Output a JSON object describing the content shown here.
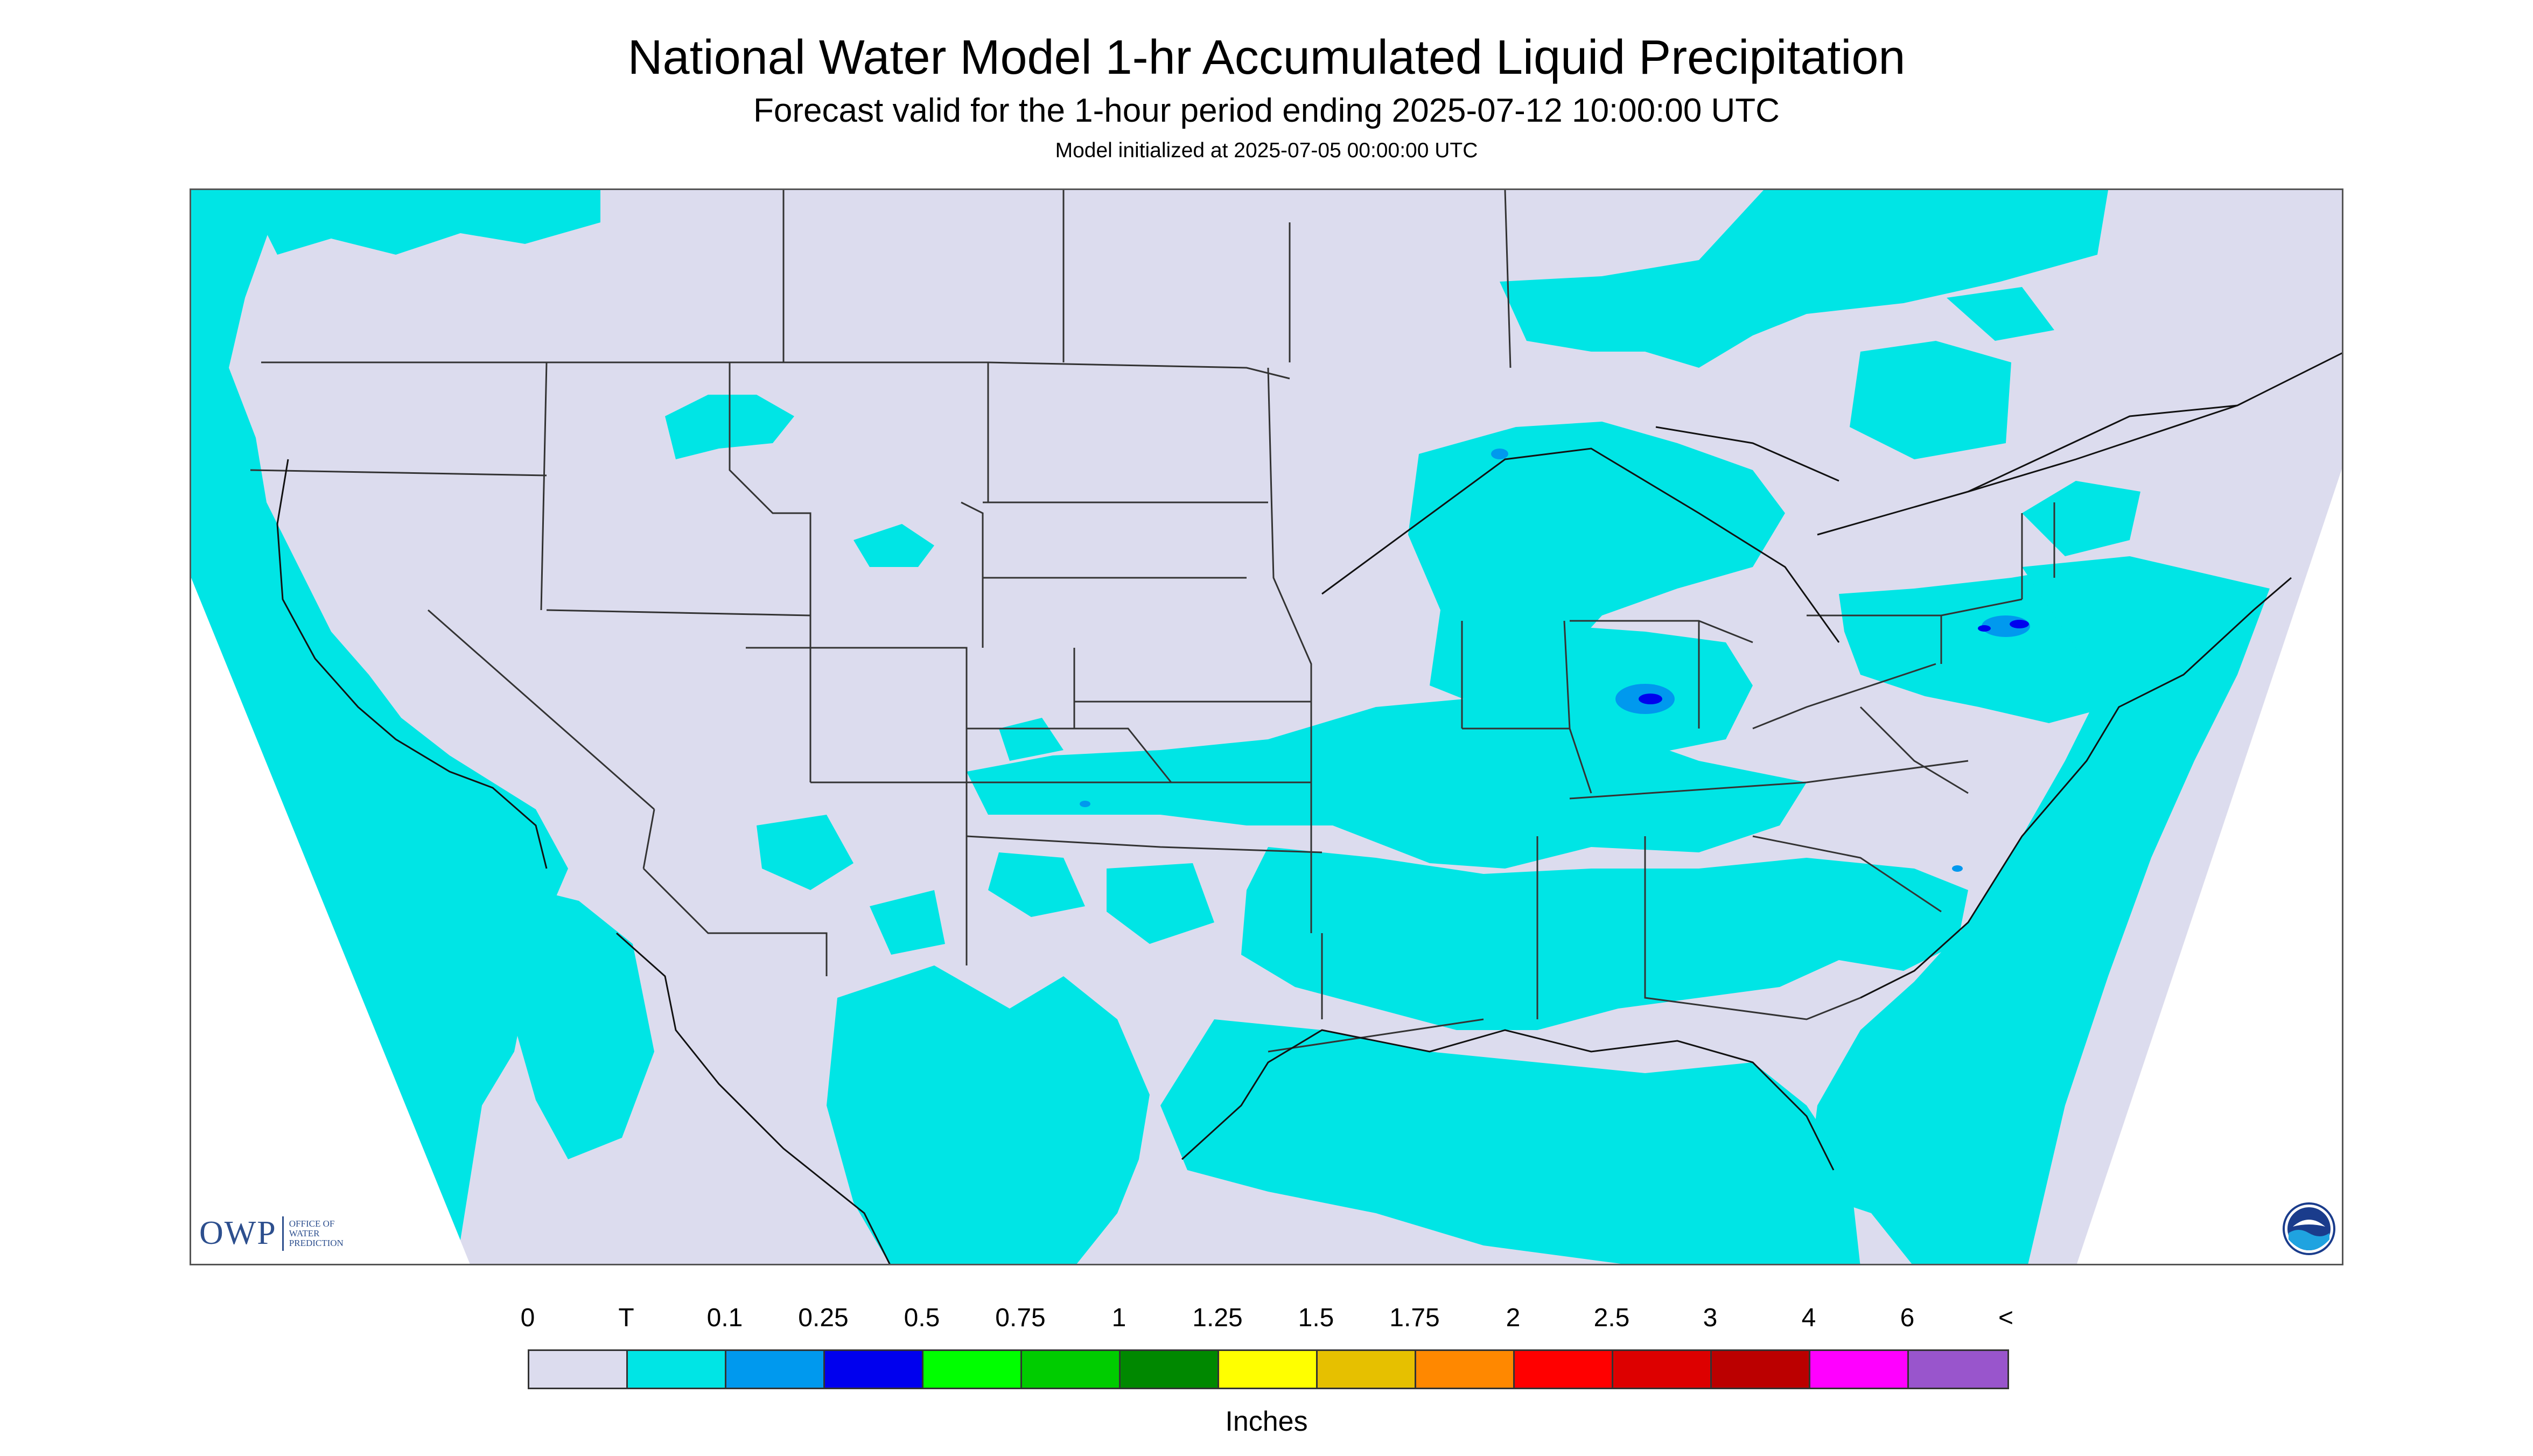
{
  "title": "National Water Model 1-hr Accumulated Liquid Precipitation",
  "subtitle": "Forecast valid for the 1-hour period ending 2025-07-12 10:00:00 UTC",
  "init_line": "Model initialized at 2025-07-05 00:00:00 UTC",
  "logo": {
    "text": "OWP",
    "subtext": [
      "OFFICE OF",
      "WATER",
      "PREDICTION"
    ],
    "noaa_text": "NOAA"
  },
  "colors": {
    "no_precip": "#dcdcee",
    "trace": "#00e5e5",
    "light_blue": "#0099ee",
    "blue": "#0000ee",
    "borders": "#333333",
    "frame": "#555555"
  },
  "legend": {
    "labels": [
      "0",
      "T",
      "0.1",
      "0.25",
      "0.5",
      "0.75",
      "1",
      "1.25",
      "1.5",
      "1.75",
      "2",
      "2.5",
      "3",
      "4",
      "6",
      "<"
    ],
    "colors": [
      "#dcdcee",
      "#00e5e5",
      "#0099ee",
      "#0000ee",
      "#00ff00",
      "#00cc00",
      "#008800",
      "#ffff00",
      "#e6c000",
      "#ff8800",
      "#ff0000",
      "#dd0000",
      "#bb0000",
      "#ff00ff",
      "#9955cc"
    ],
    "units": "Inches"
  }
}
